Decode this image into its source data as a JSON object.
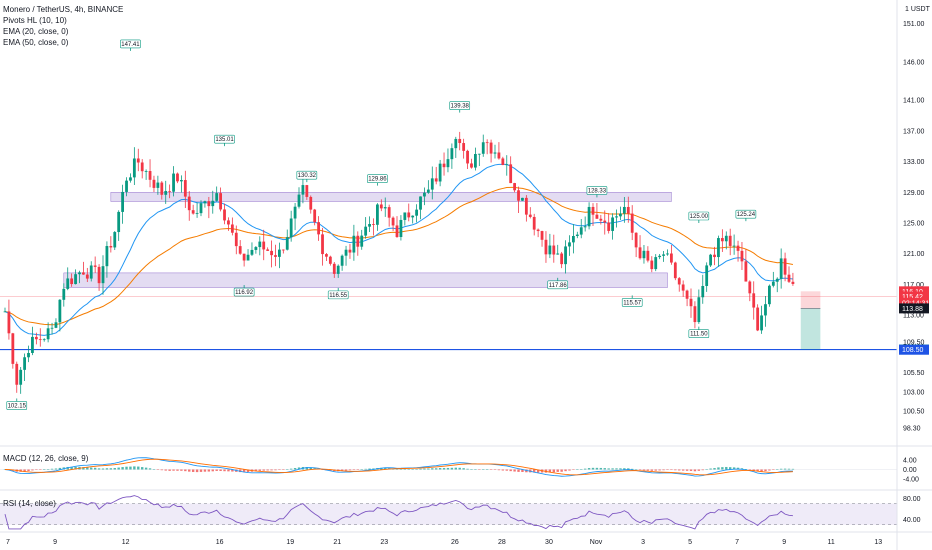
{
  "chart_data": {
    "type": "candlestick",
    "symbol_title": "Monero / TetherUS, 4h, BINANCE",
    "indicators": [
      "Pivots HL (10, 10)",
      "EMA (20, close, 0)",
      "EMA (50, close, 0)"
    ],
    "currency_label": "1 USDT",
    "y_ticks": [
      "151.00",
      "146.00",
      "141.00",
      "137.00",
      "133.00",
      "129.00",
      "125.00",
      "121.00",
      "117.00",
      "113.00",
      "109.50",
      "105.50",
      "103.00",
      "100.50",
      "98.30"
    ],
    "ylim": [
      97,
      153
    ],
    "x_ticks": [
      {
        "label": "7",
        "i": 0
      },
      {
        "label": "9",
        "i": 12
      },
      {
        "label": "12",
        "i": 30
      },
      {
        "label": "16",
        "i": 54
      },
      {
        "label": "19",
        "i": 72
      },
      {
        "label": "21",
        "i": 84
      },
      {
        "label": "23",
        "i": 96
      },
      {
        "label": "26",
        "i": 114
      },
      {
        "label": "28",
        "i": 126
      },
      {
        "label": "30",
        "i": 138
      },
      {
        "label": "Nov",
        "i": 150
      },
      {
        "label": "3",
        "i": 162
      },
      {
        "label": "5",
        "i": 174
      },
      {
        "label": "7",
        "i": 186
      },
      {
        "label": "9",
        "i": 198
      },
      {
        "label": "11",
        "i": 210
      },
      {
        "label": "13",
        "i": 222
      }
    ],
    "price_path": [
      [
        0,
        113.5
      ],
      [
        3,
        104.5
      ],
      [
        6,
        109
      ],
      [
        12,
        111
      ],
      [
        15,
        117
      ],
      [
        20,
        119
      ],
      [
        24,
        118
      ],
      [
        28,
        124
      ],
      [
        31,
        131
      ],
      [
        34,
        133
      ],
      [
        40,
        129
      ],
      [
        44,
        131
      ],
      [
        48,
        126
      ],
      [
        54,
        129
      ],
      [
        57,
        125
      ],
      [
        60,
        120
      ],
      [
        64,
        122
      ],
      [
        70,
        121
      ],
      [
        76,
        129
      ],
      [
        81,
        122
      ],
      [
        84,
        119
      ],
      [
        90,
        123
      ],
      [
        96,
        127
      ],
      [
        100,
        124
      ],
      [
        104,
        127
      ],
      [
        108,
        129
      ],
      [
        112,
        133
      ],
      [
        115,
        137
      ],
      [
        118,
        132
      ],
      [
        122,
        136
      ],
      [
        126,
        134
      ],
      [
        130,
        130
      ],
      [
        135,
        125
      ],
      [
        138,
        122
      ],
      [
        142,
        120
      ],
      [
        146,
        124
      ],
      [
        150,
        127
      ],
      [
        154,
        125
      ],
      [
        158,
        127
      ],
      [
        161,
        122
      ],
      [
        165,
        119
      ],
      [
        168,
        121
      ],
      [
        172,
        117
      ],
      [
        176,
        112
      ],
      [
        180,
        121
      ],
      [
        184,
        123
      ],
      [
        188,
        120
      ],
      [
        190,
        115
      ],
      [
        192,
        112
      ],
      [
        196,
        117
      ],
      [
        198,
        120
      ],
      [
        201,
        117
      ]
    ],
    "candle_count": 202,
    "pivots": [
      {
        "label": "102.15",
        "i": 3,
        "price": 102.15,
        "type": "low"
      },
      {
        "label": "147.41",
        "i": 32,
        "price": 147.41,
        "type": "high"
      },
      {
        "label": "135.01",
        "i": 56,
        "price": 135.01,
        "type": "high"
      },
      {
        "label": "116.92",
        "i": 61,
        "price": 116.92,
        "type": "low"
      },
      {
        "label": "130.32",
        "i": 77,
        "price": 130.32,
        "type": "high"
      },
      {
        "label": "116.55",
        "i": 85,
        "price": 116.55,
        "type": "low"
      },
      {
        "label": "129.86",
        "i": 95,
        "price": 129.86,
        "type": "high"
      },
      {
        "label": "139.38",
        "i": 116,
        "price": 139.38,
        "type": "high"
      },
      {
        "label": "117.86",
        "i": 141,
        "price": 117.86,
        "type": "low"
      },
      {
        "label": "128.33",
        "i": 151,
        "price": 128.33,
        "type": "high"
      },
      {
        "label": "115.57",
        "i": 160,
        "price": 115.57,
        "type": "low"
      },
      {
        "label": "111.50",
        "i": 177,
        "price": 111.5,
        "type": "low"
      },
      {
        "label": "125.00",
        "i": 177,
        "price": 125.0,
        "type": "high"
      },
      {
        "label": "125.24",
        "i": 189,
        "price": 125.24,
        "type": "high"
      }
    ],
    "zones": [
      {
        "from_i": 27,
        "to_i": 170,
        "top": 129,
        "bottom": 127.8,
        "color": "#d1c4e9"
      },
      {
        "from_i": 15,
        "to_i": 169,
        "top": 118.5,
        "bottom": 116.6,
        "color": "#d1c4e9"
      }
    ],
    "horizontal_line": {
      "price": 108.52,
      "color": "#1e53e5"
    },
    "position_box": {
      "entry": 113.88,
      "stop": 116.1,
      "target": 108.5,
      "from_i": 203,
      "to_i": 208
    },
    "price_tags": [
      {
        "label": "116.10",
        "price": 116.1,
        "color": "#f23645"
      },
      {
        "label": "115.42",
        "price": 115.42,
        "color": "#f23645"
      },
      {
        "label": "02:14:31",
        "price": 114.6,
        "color": "#f23645"
      },
      {
        "label": "113.88",
        "price": 113.88,
        "color": "#131722"
      },
      {
        "label": "108.52",
        "price": 108.52,
        "color": "#089981"
      },
      {
        "label": "108.50",
        "price": 108.5,
        "color": "#1e53e5"
      }
    ],
    "colors": {
      "up": "#089981",
      "down": "#f23645",
      "ema20": "#2196f3",
      "ema50": "#f57c00",
      "rsi": "#7e57c2",
      "macd": "#2196f3",
      "signal": "#ff6d00"
    },
    "macd": {
      "label": "MACD (12, 26, close, 9)",
      "y_ticks": [
        "4.00",
        "0.00",
        "-4.00"
      ],
      "ylim": [
        -6,
        6
      ]
    },
    "rsi": {
      "label": "RSI (14, close)",
      "y_ticks": [
        "80.00",
        "40.00"
      ],
      "ylim": [
        20,
        90
      ],
      "band": [
        30,
        70
      ]
    }
  }
}
